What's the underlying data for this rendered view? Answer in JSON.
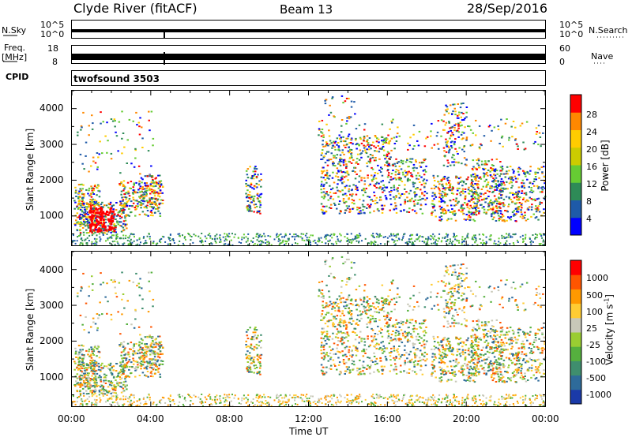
{
  "header": {
    "title": "Clyde River (fitACF)",
    "beam": "Beam 13",
    "date": "28/Sep/2016"
  },
  "strip1": {
    "left_label": "N.Sky",
    "left_ticks": [
      "10^5",
      "10^0"
    ],
    "right_label": "N.Search",
    "right_ticks": [
      "10^5",
      "10^0"
    ]
  },
  "strip2": {
    "left_label_1": "Freq.",
    "left_label_2": "[MHz]",
    "left_ticks": [
      "18",
      "8"
    ],
    "right_label": "Nave",
    "right_ticks": [
      "60",
      "0"
    ]
  },
  "cpid": {
    "label": "CPID",
    "text": "twofsound 3503"
  },
  "chart_data": [
    {
      "type": "heatmap",
      "quantity": "power",
      "ylabel": "Slant Range [km]",
      "yticks": [
        "4000",
        "3000",
        "2000",
        "1000"
      ],
      "ylim": [
        180,
        4500
      ],
      "xlabel": "Time UT",
      "xticks": [
        "00:00",
        "04:00",
        "08:00",
        "12:00",
        "16:00",
        "20:00",
        "00:00"
      ],
      "colorbar": {
        "label": "Power [dB]",
        "ticks": [
          "28",
          "24",
          "20",
          "16",
          "12",
          "8",
          "4"
        ],
        "colors": [
          "#0000ff",
          "#1e5aa8",
          "#2e8b57",
          "#66cc33",
          "#cccc00",
          "#ffcc00",
          "#ff8800",
          "#ff0000"
        ]
      }
    },
    {
      "type": "heatmap",
      "quantity": "velocity",
      "ylabel": "Slant Range [km]",
      "yticks": [
        "4000",
        "3000",
        "2000",
        "1000"
      ],
      "ylim": [
        180,
        4500
      ],
      "xlabel": "Time UT",
      "xticks": [
        "00:00",
        "04:00",
        "08:00",
        "12:00",
        "16:00",
        "20:00",
        "00:00"
      ],
      "colorbar": {
        "label": "Velocity [m s^-1]",
        "ticks": [
          "1000",
          "500",
          "100",
          "25",
          "-25",
          "-100",
          "-500",
          "-1000"
        ],
        "colors": [
          "#1a3aa8",
          "#2e6b9a",
          "#3f8e6e",
          "#55b03e",
          "#9acd32",
          "#c8c8b8",
          "#ffcc33",
          "#ff9900",
          "#ff5500",
          "#ff0000"
        ]
      }
    }
  ],
  "footer": {
    "xlabel": "Time UT"
  }
}
